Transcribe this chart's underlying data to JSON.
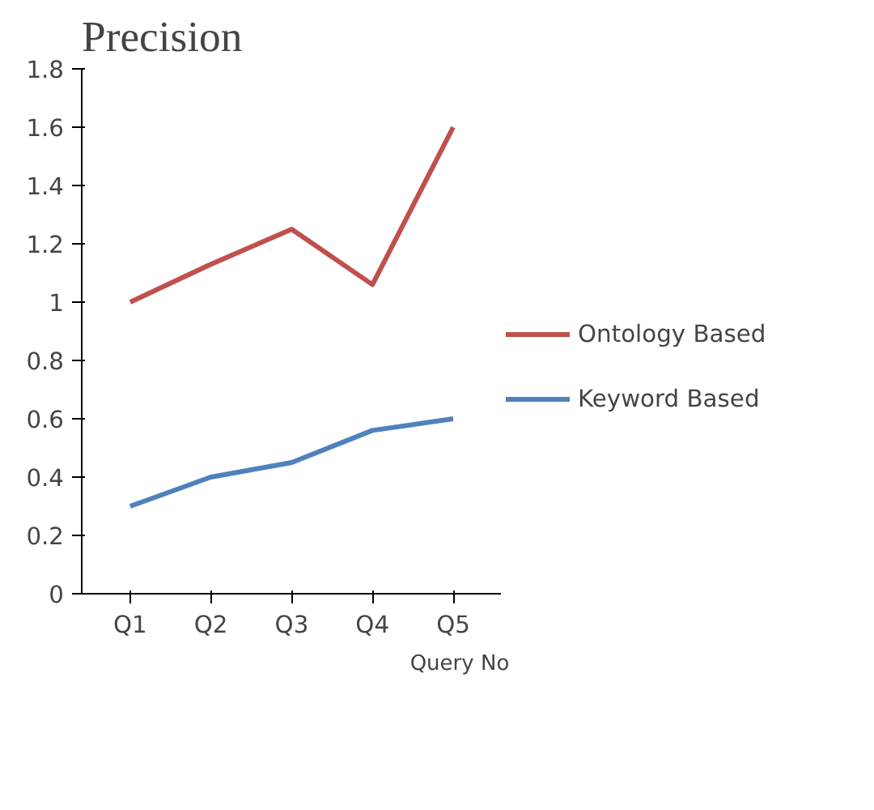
{
  "chart_data": {
    "type": "line",
    "title": "Precision",
    "xlabel": "Query No",
    "categories": [
      "Q1",
      "Q2",
      "Q3",
      "Q4",
      "Q5"
    ],
    "series": [
      {
        "name": "Ontology Based",
        "color": "#c0504d",
        "values": [
          1.0,
          1.13,
          1.25,
          1.06,
          1.6
        ]
      },
      {
        "name": "Keyword Based",
        "color": "#4f81bd",
        "values": [
          0.3,
          0.4,
          0.45,
          0.56,
          0.6
        ]
      }
    ],
    "ylim": [
      0,
      1.8
    ],
    "yticks": [
      0,
      0.2,
      0.4,
      0.6,
      0.8,
      1,
      1.2,
      1.4,
      1.6,
      1.8
    ],
    "legend": "right",
    "line_style": "solid",
    "marker": "none"
  }
}
